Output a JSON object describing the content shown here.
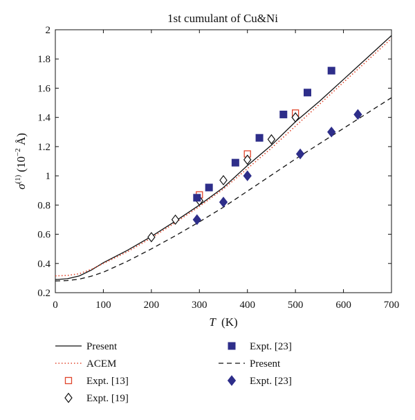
{
  "chart_data": {
    "type": "line",
    "title": "1st cumulant of Cu&Ni",
    "xlabel": "T",
    "xlabel_unit": "(K)",
    "ylabel_symbol": "σ",
    "ylabel_superscript": "(1)",
    "ylabel_unit_prefix": "(10",
    "ylabel_unit_exponent": "−2",
    "ylabel_unit_suffix": " Å)",
    "xlim": [
      0,
      700
    ],
    "ylim": [
      0.2,
      2.0
    ],
    "xticks": [
      0,
      100,
      200,
      300,
      400,
      500,
      600,
      700
    ],
    "xtick_labels": [
      "0",
      "100",
      "200",
      "300",
      "400",
      "500",
      "600",
      "700"
    ],
    "yticks": [
      0.2,
      0.4,
      0.6,
      0.8,
      1.0,
      1.2,
      1.4,
      1.6,
      1.8,
      2.0
    ],
    "ytick_labels": [
      "0.2",
      "0.4",
      "0.6",
      "0.8",
      "1",
      "1.2",
      "1.4",
      "1.6",
      "1.8",
      "2"
    ],
    "grid": false,
    "legend_placement": "bottom",
    "series": [
      {
        "name": "Present",
        "kind": "line",
        "style": "solid",
        "color": "#111111",
        "x": [
          0,
          25,
          50,
          75,
          100,
          150,
          200,
          250,
          300,
          350,
          400,
          450,
          500,
          550,
          600,
          650,
          700
        ],
        "y": [
          0.29,
          0.295,
          0.315,
          0.355,
          0.405,
          0.49,
          0.585,
          0.69,
          0.8,
          0.92,
          1.07,
          1.21,
          1.37,
          1.51,
          1.66,
          1.81,
          1.96
        ]
      },
      {
        "name": "ACEM",
        "kind": "line",
        "style": "dotted",
        "color": "#e0442a",
        "x": [
          0,
          25,
          50,
          75,
          100,
          150,
          200,
          250,
          300,
          350,
          400,
          450,
          500,
          550,
          600,
          650,
          700
        ],
        "y": [
          0.315,
          0.318,
          0.33,
          0.36,
          0.4,
          0.48,
          0.575,
          0.68,
          0.79,
          0.91,
          1.05,
          1.19,
          1.34,
          1.49,
          1.64,
          1.79,
          1.94
        ]
      },
      {
        "name": "Expt. [13]",
        "kind": "scatter",
        "marker": "square-open",
        "color": "#e0442a",
        "x": [
          300,
          400,
          500
        ],
        "y": [
          0.87,
          1.15,
          1.43
        ]
      },
      {
        "name": "Expt. [19]",
        "kind": "scatter",
        "marker": "diamond-open",
        "color": "#111111",
        "x": [
          200,
          250,
          300,
          350,
          400,
          450,
          500
        ],
        "y": [
          0.58,
          0.7,
          0.83,
          0.97,
          1.11,
          1.25,
          1.4
        ]
      },
      {
        "name": "Expt. [23]",
        "kind": "scatter",
        "marker": "square-filled",
        "color": "#2e2e8a",
        "x": [
          295,
          320,
          375,
          425,
          475,
          525,
          575
        ],
        "y": [
          0.85,
          0.92,
          1.09,
          1.26,
          1.42,
          1.57,
          1.72
        ]
      },
      {
        "name": "Present",
        "kind": "line",
        "style": "dashed",
        "color": "#111111",
        "x": [
          0,
          25,
          50,
          75,
          100,
          150,
          200,
          250,
          300,
          350,
          400,
          450,
          500,
          550,
          600,
          650,
          700
        ],
        "y": [
          0.28,
          0.283,
          0.293,
          0.313,
          0.34,
          0.415,
          0.5,
          0.59,
          0.685,
          0.785,
          0.895,
          1.005,
          1.115,
          1.22,
          1.325,
          1.43,
          1.535
        ]
      },
      {
        "name": "Expt. [23]",
        "kind": "scatter",
        "marker": "diamond-filled",
        "color": "#2e2e8a",
        "x": [
          295,
          350,
          400,
          510,
          575,
          630
        ],
        "y": [
          0.7,
          0.82,
          1.0,
          1.15,
          1.3,
          1.42
        ]
      }
    ],
    "legend_order": [
      0,
      1,
      2,
      3,
      4,
      5,
      6
    ]
  }
}
